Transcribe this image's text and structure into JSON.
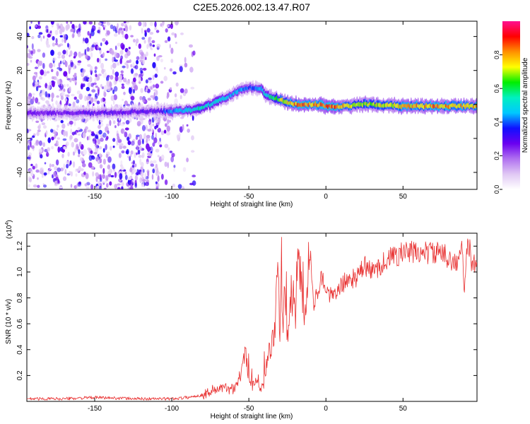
{
  "title": "C2E5.2026.002.13.47.R07",
  "colors": {
    "snr_line": "#e83030",
    "colormap": [
      "#ffffff",
      "#e0c8f4",
      "#b070f0",
      "#6a00f0",
      "#1010ff",
      "#00c8ff",
      "#00f0c0",
      "#00ee00",
      "#ffff00",
      "#ff9000",
      "#ff0000",
      "#ff1090"
    ]
  },
  "chart_data": [
    {
      "type": "heatmap",
      "title": "",
      "xlabel": "Height of straight line (km)",
      "ylabel": "Frequency (Hz)",
      "xlim": [
        -194,
        98
      ],
      "ylim": [
        -50,
        49
      ],
      "xticks": [
        -150,
        -100,
        -50,
        0,
        50
      ],
      "xtick_labels": [
        "-150",
        "-100",
        "-50",
        "0",
        "50"
      ],
      "yticks": [
        -40,
        -20,
        0,
        20,
        40
      ],
      "ytick_labels": [
        "-40",
        "-20",
        "0",
        "20",
        "40"
      ],
      "colorbar": {
        "label": "Normalized spectral amplitude",
        "range": [
          0,
          1
        ],
        "ticks": [
          0.0,
          0.2,
          0.4,
          0.6,
          0.8
        ],
        "tick_labels": [
          "0.0",
          "0.2",
          "0.4",
          "0.6",
          "0.8"
        ]
      },
      "ridge": {
        "description_values": "peak frequency (Hz) vs height (km)",
        "x": [
          -194,
          -150,
          -110,
          -100,
          -85,
          -75,
          -65,
          -55,
          -48,
          -42,
          -38,
          -30,
          -25,
          -20,
          -15,
          -10,
          -5,
          0,
          5,
          10,
          15,
          20,
          30,
          50,
          70,
          98
        ],
        "y": [
          -5,
          -5,
          -4,
          -4,
          -3,
          0,
          4,
          9,
          10,
          9,
          5,
          3,
          1,
          0,
          0,
          0,
          0,
          -1,
          -1,
          -1,
          -1,
          0,
          0,
          -1,
          -1,
          -1
        ],
        "amplitude": [
          0.28,
          0.3,
          0.3,
          0.45,
          0.55,
          0.55,
          0.5,
          0.45,
          0.4,
          0.45,
          0.55,
          0.7,
          0.8,
          0.85,
          0.85,
          0.85,
          0.85,
          0.95,
          0.9,
          0.85,
          0.8,
          0.75,
          0.75,
          0.8,
          0.85,
          0.8
        ]
      }
    },
    {
      "type": "line",
      "title": "",
      "xlabel": "Height of straight line (km)",
      "ylabel": "SNR (10 * v/v)",
      "y_scale_label": "(x10",
      "y_scale_exponent": "4",
      "y_scale_close": ")",
      "xlim": [
        -194,
        98
      ],
      "ylim": [
        0,
        1.3
      ],
      "xticks": [
        -150,
        -100,
        -50,
        0,
        50
      ],
      "xtick_labels": [
        "-150",
        "-100",
        "-50",
        "0",
        "50"
      ],
      "yticks": [
        0.2,
        0.4,
        0.6,
        0.8,
        1.0,
        1.2
      ],
      "ytick_labels": [
        "0.2",
        "0.4",
        "0.6",
        "0.8",
        "1.0",
        "1.2"
      ],
      "series": [
        {
          "name": "SNR",
          "x": [
            -194,
            -170,
            -150,
            -120,
            -100,
            -90,
            -80,
            -75,
            -70,
            -60,
            -55,
            -52,
            -50,
            -48,
            -45,
            -42,
            -40,
            -38,
            -35,
            -33,
            -31,
            -30,
            -29,
            -28,
            -27,
            -25,
            -23,
            -21,
            -20,
            -18,
            -15,
            -13,
            -10,
            -8,
            -5,
            -3,
            0,
            5,
            10,
            15,
            20,
            25,
            30,
            40,
            50,
            60,
            70,
            80,
            85,
            88,
            90,
            92,
            95,
            98
          ],
          "values": [
            0.02,
            0.02,
            0.03,
            0.02,
            0.02,
            0.03,
            0.05,
            0.08,
            0.1,
            0.1,
            0.2,
            0.4,
            0.15,
            0.12,
            0.18,
            0.1,
            0.15,
            0.35,
            0.45,
            0.6,
            1.1,
            0.4,
            1.2,
            0.5,
            0.8,
            0.5,
            0.7,
            0.9,
            0.6,
            1.2,
            0.8,
            0.7,
            1.1,
            0.75,
            0.85,
            1.0,
            0.85,
            0.8,
            0.9,
            0.95,
            0.95,
            1.05,
            1.0,
            1.1,
            1.15,
            1.15,
            1.15,
            1.12,
            1.05,
            1.2,
            0.85,
            1.25,
            1.05,
            1.1
          ]
        }
      ]
    }
  ]
}
